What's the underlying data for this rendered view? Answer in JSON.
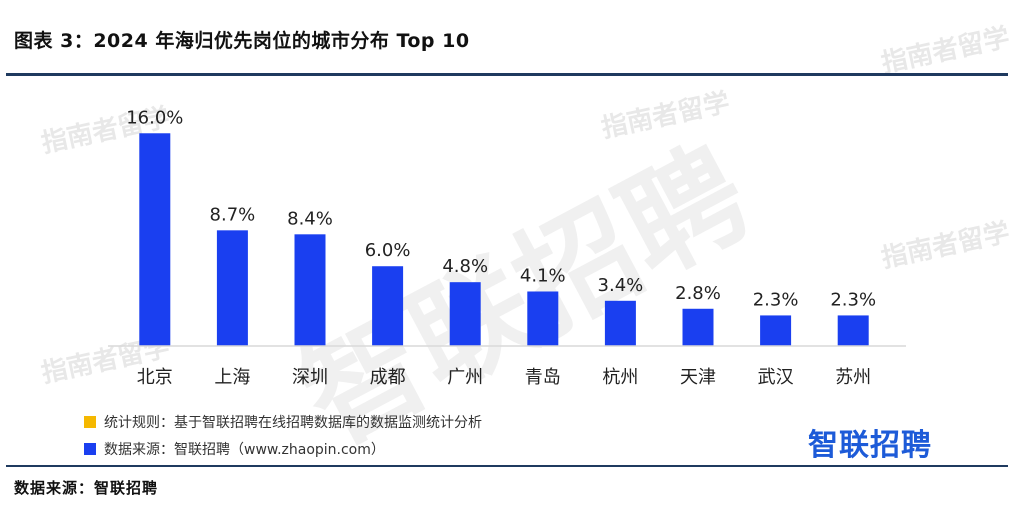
{
  "header": {
    "title": "图表 3：2024 年海归优先岗位的城市分布 Top 10"
  },
  "chart_data": {
    "type": "bar",
    "title": "2024 年海归优先岗位的城市分布 Top 10",
    "categories": [
      "北京",
      "上海",
      "深圳",
      "成都",
      "广州",
      "青岛",
      "杭州",
      "天津",
      "武汉",
      "苏州"
    ],
    "values": [
      16.0,
      8.7,
      8.4,
      6.0,
      4.8,
      4.1,
      3.4,
      2.8,
      2.3,
      2.3
    ],
    "value_labels": [
      "16.0%",
      "8.7%",
      "8.4%",
      "6.0%",
      "4.8%",
      "4.1%",
      "3.4%",
      "2.8%",
      "2.3%",
      "2.3%"
    ],
    "unit": "%",
    "ylim": [
      0,
      17.6
    ],
    "grid": false,
    "xlabel": "",
    "ylabel": "",
    "bar_color": "#1a3ff0"
  },
  "legend": {
    "items": [
      {
        "label": "统计规则：基于智联招聘在线招聘数据库的数据监测统计分析",
        "color": "#f5b800"
      },
      {
        "label": "数据来源：智联招聘（www.zhaopin.com）",
        "color": "#1a3ff0"
      }
    ]
  },
  "logo": {
    "text": "智联招聘"
  },
  "footer": {
    "source": "数据来源：智联招聘"
  },
  "watermarks": {
    "badge": "指南者留学",
    "big": "智联招聘"
  }
}
